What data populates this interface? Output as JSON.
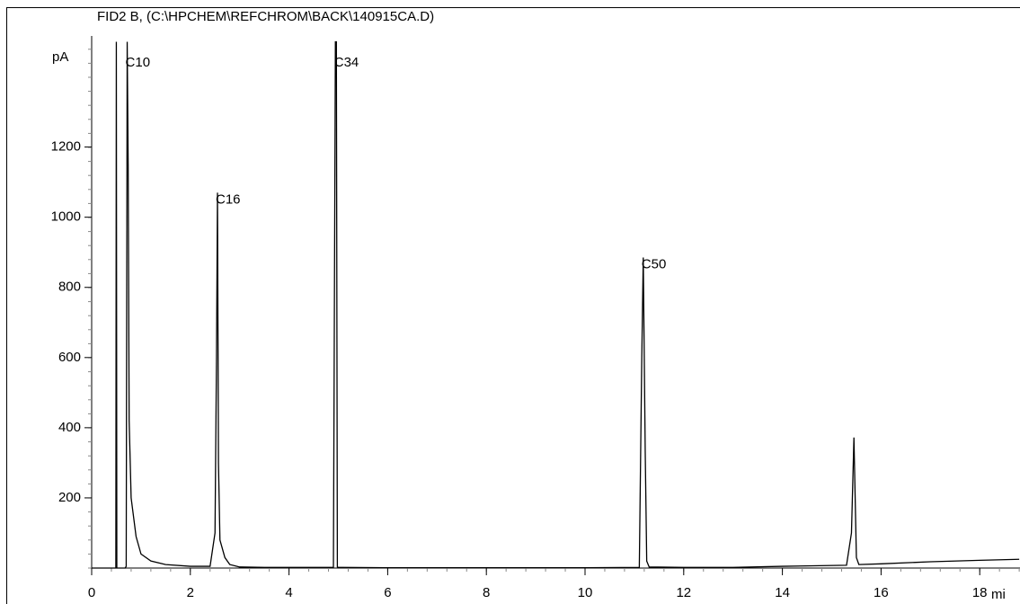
{
  "chart_data": {
    "type": "line",
    "title": "FID2 B, (C:\\HPCHEM\\REFCHROM\\BACK\\140915CA.D)",
    "x_label": "mi",
    "y_label": "pA",
    "xlim": [
      0,
      18.8
    ],
    "xticks": [
      0,
      2,
      4,
      6,
      8,
      10,
      12,
      14,
      16,
      18
    ],
    "ylim": [
      0,
      1500
    ],
    "yticks": [
      200,
      400,
      600,
      800,
      1000,
      1200
    ],
    "series": [
      {
        "color": "#000000",
        "x": [
          0,
          0.49,
          0.5,
          0.51,
          0.68,
          0.7,
          0.72,
          0.74,
          0.76,
          0.8,
          0.9,
          1.0,
          1.2,
          1.5,
          2.0,
          2.4,
          2.5,
          2.53,
          2.55,
          2.57,
          2.6,
          2.7,
          2.8,
          3.0,
          3.5,
          4.9,
          4.94,
          4.96,
          4.98,
          5.0,
          6,
          8,
          10,
          11.1,
          11.15,
          11.18,
          11.22,
          11.25,
          11.3,
          12,
          13,
          14,
          15.3,
          15.4,
          15.45,
          15.5,
          15.55,
          16,
          17,
          18,
          18.8
        ],
        "values": [
          0,
          0,
          1500,
          0,
          0,
          5,
          1500,
          1150,
          420,
          200,
          90,
          40,
          20,
          10,
          5,
          5,
          100,
          600,
          1070,
          300,
          80,
          30,
          10,
          3,
          2,
          2,
          1500,
          1500,
          3,
          2,
          1,
          1,
          1,
          2,
          600,
          885,
          330,
          20,
          3,
          2,
          2,
          5,
          8,
          100,
          372,
          30,
          10,
          12,
          18,
          22,
          25
        ]
      }
    ],
    "annotations": [
      {
        "text": "C10",
        "x": 0.72,
        "y": 1460
      },
      {
        "text": "C16",
        "x": 2.55,
        "y": 1070
      },
      {
        "text": "C34",
        "x": 4.95,
        "y": 1460
      },
      {
        "text": "C50",
        "x": 11.18,
        "y": 885
      }
    ]
  }
}
